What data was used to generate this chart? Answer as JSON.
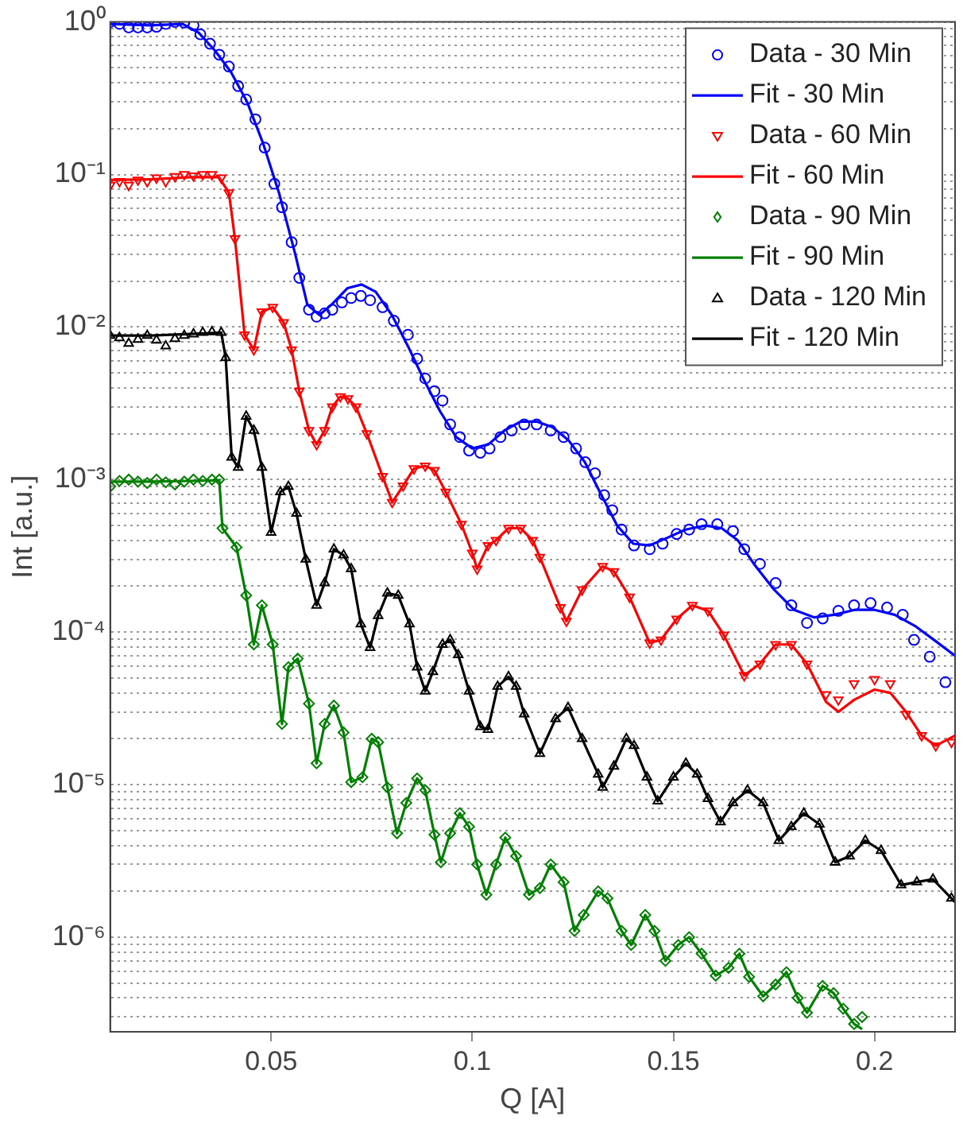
{
  "chart_data": {
    "type": "scatter",
    "xlabel": "Q [A]",
    "ylabel": "Int [a.u.]",
    "log": "y",
    "grid": "y",
    "legend": "top right",
    "xlim": [
      0.01,
      0.22
    ],
    "xticks": [
      0.05,
      0.1,
      0.15,
      0.2
    ],
    "ylim": [
      2.4e-07,
      1
    ],
    "yticks": [
      {
        "value": 3e-07,
        "label": null
      },
      {
        "value": 4e-07,
        "label": null
      },
      {
        "value": 5e-07,
        "label": null
      },
      {
        "value": 6e-07,
        "label": null
      },
      {
        "value": 7e-07,
        "label": null
      },
      {
        "value": 8e-07,
        "label": null
      },
      {
        "value": 9e-07,
        "label": null
      },
      {
        "value": 1e-06,
        "label": "10⁻⁶"
      },
      {
        "value": 2e-06,
        "label": null
      },
      {
        "value": 3e-06,
        "label": null
      },
      {
        "value": 4e-06,
        "label": null
      },
      {
        "value": 5e-06,
        "label": null
      },
      {
        "value": 6e-06,
        "label": null
      },
      {
        "value": 7e-06,
        "label": null
      },
      {
        "value": 8e-06,
        "label": null
      },
      {
        "value": 9e-06,
        "label": null
      },
      {
        "value": 1e-05,
        "label": "10⁻⁵"
      },
      {
        "value": 2e-05,
        "label": null
      },
      {
        "value": 3e-05,
        "label": null
      },
      {
        "value": 4e-05,
        "label": null
      },
      {
        "value": 5e-05,
        "label": null
      },
      {
        "value": 6e-05,
        "label": null
      },
      {
        "value": 7e-05,
        "label": null
      },
      {
        "value": 8e-05,
        "label": null
      },
      {
        "value": 9e-05,
        "label": null
      },
      {
        "value": 0.0001,
        "label": "10⁻⁴"
      },
      {
        "value": 0.0002,
        "label": null
      },
      {
        "value": 0.0003,
        "label": null
      },
      {
        "value": 0.0004,
        "label": null
      },
      {
        "value": 0.0005,
        "label": null
      },
      {
        "value": 0.0006,
        "label": null
      },
      {
        "value": 0.0007,
        "label": null
      },
      {
        "value": 0.0008,
        "label": null
      },
      {
        "value": 0.0009,
        "label": null
      },
      {
        "value": 0.001,
        "label": "10⁻³"
      },
      {
        "value": 0.002,
        "label": null
      },
      {
        "value": 0.003,
        "label": null
      },
      {
        "value": 0.004,
        "label": null
      },
      {
        "value": 0.005,
        "label": null
      },
      {
        "value": 0.006,
        "label": null
      },
      {
        "value": 0.007,
        "label": null
      },
      {
        "value": 0.008,
        "label": null
      },
      {
        "value": 0.009,
        "label": null
      },
      {
        "value": 0.01,
        "label": "10⁻²"
      },
      {
        "value": 0.02,
        "label": null
      },
      {
        "value": 0.03,
        "label": null
      },
      {
        "value": 0.04,
        "label": null
      },
      {
        "value": 0.05,
        "label": null
      },
      {
        "value": 0.06,
        "label": null
      },
      {
        "value": 0.07,
        "label": null
      },
      {
        "value": 0.08,
        "label": null
      },
      {
        "value": 0.09,
        "label": null
      },
      {
        "value": 0.1,
        "label": "10⁻¹"
      },
      {
        "value": 0.2,
        "label": null
      },
      {
        "value": 0.3,
        "label": null
      },
      {
        "value": 0.4,
        "label": null
      },
      {
        "value": 0.5,
        "label": null
      },
      {
        "value": 0.6,
        "label": null
      },
      {
        "value": 0.7,
        "label": null
      },
      {
        "value": 0.8,
        "label": null
      },
      {
        "value": 0.9,
        "label": null
      },
      {
        "value": 1,
        "label": "10⁰"
      }
    ],
    "series": [
      {
        "name": "Data - 30 Min",
        "type": "scatter",
        "marker": "circle",
        "color": "#0000ff",
        "x": [
          0.01,
          0.0123,
          0.0146,
          0.0169,
          0.0192,
          0.0215,
          0.0238,
          0.0261,
          0.0284,
          0.0307,
          0.0324,
          0.0348,
          0.0371,
          0.0395,
          0.0418,
          0.0438,
          0.0461,
          0.0484,
          0.0508,
          0.0527,
          0.0551,
          0.057,
          0.0594,
          0.0613,
          0.0633,
          0.0652,
          0.0676,
          0.0699,
          0.0723,
          0.0746,
          0.0777,
          0.0805,
          0.084,
          0.0863,
          0.0883,
          0.0906,
          0.0926,
          0.0945,
          0.0969,
          0.0992,
          0.102,
          0.1043,
          0.107,
          0.1098,
          0.1129,
          0.116,
          0.1195,
          0.1227,
          0.1258,
          0.1281,
          0.1305,
          0.1328,
          0.1348,
          0.1371,
          0.1402,
          0.1441,
          0.1473,
          0.1508,
          0.1539,
          0.157,
          0.1609,
          0.1648,
          0.1676,
          0.1715,
          0.1754,
          0.1793,
          0.1832,
          0.1871,
          0.191,
          0.1949,
          0.199,
          0.2031,
          0.207,
          0.2098,
          0.2137,
          0.2176
        ],
        "values": [
          1.0,
          0.97,
          0.92,
          0.92,
          0.92,
          0.93,
          0.97,
          1.0,
          0.99,
          0.95,
          0.83,
          0.72,
          0.61,
          0.51,
          0.38,
          0.31,
          0.23,
          0.15,
          0.087,
          0.061,
          0.036,
          0.021,
          0.013,
          0.0117,
          0.0123,
          0.013,
          0.0145,
          0.0155,
          0.016,
          0.015,
          0.0135,
          0.011,
          0.0089,
          0.0062,
          0.0046,
          0.0038,
          0.0033,
          0.0023,
          0.0019,
          0.00155,
          0.0015,
          0.0016,
          0.0019,
          0.0021,
          0.0023,
          0.0023,
          0.0021,
          0.0019,
          0.0016,
          0.0013,
          0.0011,
          0.00079,
          0.00063,
          0.00047,
          0.00037,
          0.00035,
          0.00038,
          0.00044,
          0.00047,
          0.00051,
          0.00051,
          0.00046,
          0.00035,
          0.00028,
          0.00021,
          0.00015,
          0.000115,
          0.000123,
          0.000138,
          0.00015,
          0.000155,
          0.000145,
          0.00013,
          8.9e-05,
          6.9e-05,
          4.7e-05
        ]
      },
      {
        "name": "Fit - 30 Min",
        "type": "line",
        "marker": "none",
        "color": "#0000ff",
        "x": [
          0.01,
          0.02,
          0.028,
          0.032,
          0.036,
          0.04,
          0.044,
          0.048,
          0.052,
          0.056,
          0.059,
          0.062,
          0.065,
          0.069,
          0.0725,
          0.076,
          0.08,
          0.084,
          0.088,
          0.092,
          0.096,
          0.1,
          0.104,
          0.108,
          0.112,
          0.116,
          0.12,
          0.124,
          0.128,
          0.132,
          0.136,
          0.14,
          0.144,
          0.148,
          0.153,
          0.158,
          0.162,
          0.166,
          0.17,
          0.175,
          0.18,
          0.185,
          0.19,
          0.195,
          0.2,
          0.205,
          0.21,
          0.215,
          0.22
        ],
        "values": [
          0.97,
          0.95,
          0.97,
          0.85,
          0.65,
          0.47,
          0.3,
          0.16,
          0.075,
          0.03,
          0.014,
          0.012,
          0.014,
          0.018,
          0.019,
          0.017,
          0.012,
          0.0075,
          0.0045,
          0.0028,
          0.0019,
          0.0016,
          0.0017,
          0.0021,
          0.0024,
          0.0024,
          0.0022,
          0.0018,
          0.0013,
          0.0008,
          0.0005,
          0.00038,
          0.00037,
          0.00041,
          0.00047,
          0.0005,
          0.00048,
          0.0004,
          0.00028,
          0.00019,
          0.00014,
          0.000125,
          0.00013,
          0.00014,
          0.00014,
          0.00013,
          0.00011,
          8.8e-05,
          7e-05
        ]
      },
      {
        "name": "Data - 60 Min",
        "type": "scatter",
        "marker": "triangle-down",
        "color": "#ff0000",
        "x": [
          0.01,
          0.0123,
          0.0146,
          0.0169,
          0.0192,
          0.0215,
          0.0238,
          0.0261,
          0.0284,
          0.0307,
          0.033,
          0.0353,
          0.0376,
          0.0395,
          0.041,
          0.0434,
          0.0457,
          0.0477,
          0.0504,
          0.0531,
          0.0551,
          0.057,
          0.0594,
          0.0613,
          0.0633,
          0.0652,
          0.0672,
          0.0691,
          0.0711,
          0.0738,
          0.0777,
          0.0801,
          0.0828,
          0.0855,
          0.0883,
          0.0906,
          0.0934,
          0.0973,
          0.1,
          0.1012,
          0.1039,
          0.1059,
          0.109,
          0.112,
          0.115,
          0.1168,
          0.1219,
          0.1234,
          0.1273,
          0.1324,
          0.1352,
          0.1391,
          0.1441,
          0.1469,
          0.1508,
          0.1547,
          0.1586,
          0.1625,
          0.1676,
          0.1715,
          0.1754,
          0.1793,
          0.1832,
          0.1879,
          0.191,
          0.1949,
          0.2,
          0.2039,
          0.2078,
          0.2117,
          0.2152,
          0.2191
        ],
        "values": [
          0.085,
          0.09,
          0.085,
          0.092,
          0.09,
          0.095,
          0.09,
          0.097,
          0.1,
          0.098,
          0.1,
          0.1,
          0.095,
          0.076,
          0.038,
          0.0089,
          0.0071,
          0.0126,
          0.0135,
          0.0107,
          0.0071,
          0.0038,
          0.0021,
          0.0017,
          0.0021,
          0.003,
          0.0035,
          0.0034,
          0.003,
          0.002,
          0.00105,
          0.00071,
          0.00091,
          0.00118,
          0.00123,
          0.00115,
          0.00083,
          0.00051,
          0.00033,
          0.00026,
          0.00037,
          0.0004,
          0.00048,
          0.00048,
          0.0004,
          0.00031,
          0.000145,
          0.000118,
          0.00019,
          0.00027,
          0.00025,
          0.00017,
          8.5e-05,
          8.9e-05,
          0.000122,
          0.00015,
          0.000138,
          9.6e-05,
          5.2e-05,
          6.2e-05,
          8.3e-05,
          8.3e-05,
          6.2e-05,
          3.9e-05,
          3.6e-05,
          4.6e-05,
          4.9e-05,
          4.6e-05,
          2.9e-05,
          2.1e-05,
          1.8e-05,
          1.9e-05
        ]
      },
      {
        "name": "Fit - 60 Min",
        "type": "line",
        "marker": "none",
        "color": "#ff0000",
        "x": [
          0.01,
          0.02,
          0.03,
          0.037,
          0.0395,
          0.041,
          0.0434,
          0.0457,
          0.0477,
          0.0504,
          0.0531,
          0.0551,
          0.057,
          0.0594,
          0.0613,
          0.0633,
          0.0652,
          0.0672,
          0.0691,
          0.0711,
          0.0738,
          0.0777,
          0.0801,
          0.0828,
          0.0855,
          0.0883,
          0.0906,
          0.0934,
          0.0973,
          0.1,
          0.1012,
          0.1039,
          0.1059,
          0.109,
          0.112,
          0.115,
          0.1168,
          0.1219,
          0.1234,
          0.1273,
          0.1324,
          0.1352,
          0.1391,
          0.1441,
          0.1469,
          0.1508,
          0.1547,
          0.1586,
          0.1625,
          0.1676,
          0.1715,
          0.1754,
          0.1793,
          0.1832,
          0.1879,
          0.191,
          0.1949,
          0.2,
          0.2039,
          0.2078,
          0.2117,
          0.2152,
          0.22
        ],
        "values": [
          0.092,
          0.093,
          0.096,
          0.096,
          0.076,
          0.038,
          0.0089,
          0.0071,
          0.0126,
          0.0135,
          0.0107,
          0.0071,
          0.0038,
          0.0021,
          0.0017,
          0.0021,
          0.003,
          0.0035,
          0.0034,
          0.003,
          0.002,
          0.00105,
          0.00071,
          0.00091,
          0.00118,
          0.00123,
          0.00115,
          0.00083,
          0.00051,
          0.00033,
          0.00026,
          0.00037,
          0.0004,
          0.00048,
          0.00048,
          0.0004,
          0.00031,
          0.000145,
          0.000118,
          0.00019,
          0.00027,
          0.00025,
          0.00017,
          8.5e-05,
          8.9e-05,
          0.000122,
          0.00015,
          0.000138,
          9.6e-05,
          5.2e-05,
          6.2e-05,
          8.3e-05,
          8.3e-05,
          6.2e-05,
          3.5e-05,
          3e-05,
          3.6e-05,
          4.2e-05,
          4e-05,
          3e-05,
          2.1e-05,
          1.8e-05,
          2.1e-05
        ]
      },
      {
        "name": "Data - 90 Min",
        "type": "scatter",
        "marker": "diamond",
        "color": "#008000",
        "x": [
          0.01,
          0.0123,
          0.0146,
          0.0169,
          0.0192,
          0.0215,
          0.0238,
          0.0261,
          0.0284,
          0.0307,
          0.033,
          0.0353,
          0.0371,
          0.0379,
          0.0414,
          0.0438,
          0.0457,
          0.0477,
          0.0504,
          0.0527,
          0.0543,
          0.0566,
          0.0594,
          0.0613,
          0.0633,
          0.0656,
          0.068,
          0.0699,
          0.0727,
          0.075,
          0.0766,
          0.0789,
          0.0813,
          0.0836,
          0.0863,
          0.0883,
          0.0906,
          0.0922,
          0.0945,
          0.0969,
          0.0992,
          0.1012,
          0.1035,
          0.1059,
          0.1082,
          0.1109,
          0.1141,
          0.1168,
          0.1195,
          0.1227,
          0.1254,
          0.1277,
          0.1313,
          0.1336,
          0.1371,
          0.1395,
          0.143,
          0.1453,
          0.148,
          0.1512,
          0.1539,
          0.157,
          0.1605,
          0.1637,
          0.1664,
          0.1688,
          0.1723,
          0.1754,
          0.1781,
          0.1809,
          0.1832,
          0.1871,
          0.1898,
          0.1922,
          0.1949,
          0.1969
        ],
        "values": [
          0.0009,
          0.00098,
          0.001,
          0.00097,
          0.00095,
          0.001,
          0.00096,
          0.00093,
          0.00097,
          0.001,
          0.00098,
          0.001,
          0.001,
          0.00048,
          0.00036,
          0.000174,
          8.3e-05,
          0.00015,
          8.3e-05,
          2.5e-05,
          5.9e-05,
          6.7e-05,
          3.4e-05,
          1.38e-05,
          2.5e-05,
          3.3e-05,
          2.2e-05,
          1.04e-05,
          1.12e-05,
          2e-05,
          1.9e-05,
          9.6e-06,
          4.8e-06,
          7.6e-06,
          1.1e-05,
          9.2e-06,
          4.7e-06,
          3.1e-06,
          4.8e-06,
          6.5e-06,
          5.3e-06,
          3e-06,
          1.9e-06,
          3e-06,
          4.5e-06,
          3.4e-06,
          1.9e-06,
          2.1e-06,
          3e-06,
          2.3e-06,
          1.1e-06,
          1.4e-06,
          2e-06,
          1.8e-06,
          1.1e-06,
          8.9e-07,
          1.4e-06,
          1.1e-06,
          7e-07,
          8.9e-07,
          1e-06,
          7.8e-07,
          5.6e-07,
          6.3e-07,
          7.8e-07,
          5.5e-07,
          4.1e-07,
          4.9e-07,
          5.9e-07,
          4e-07,
          3.2e-07,
          4.8e-07,
          4.3e-07,
          3.4e-07,
          2.7e-07,
          3e-07
        ]
      },
      {
        "name": "Fit - 90 Min",
        "type": "line",
        "marker": "none",
        "color": "#008000",
        "x": [
          0.01,
          0.02,
          0.03,
          0.0371,
          0.0379,
          0.0414,
          0.0438,
          0.0457,
          0.0477,
          0.0504,
          0.0527,
          0.0543,
          0.0566,
          0.0594,
          0.0613,
          0.0633,
          0.0656,
          0.068,
          0.0699,
          0.0727,
          0.075,
          0.0766,
          0.0789,
          0.0813,
          0.0836,
          0.0863,
          0.0883,
          0.0906,
          0.0922,
          0.0945,
          0.0969,
          0.0992,
          0.1012,
          0.1035,
          0.1059,
          0.1082,
          0.1109,
          0.1141,
          0.1168,
          0.1195,
          0.1227,
          0.1254,
          0.1277,
          0.1313,
          0.1336,
          0.1371,
          0.1395,
          0.143,
          0.1453,
          0.148,
          0.1512,
          0.1539,
          0.157,
          0.1605,
          0.1637,
          0.1664,
          0.1688,
          0.1723,
          0.1754,
          0.1781,
          0.1809,
          0.1832,
          0.1871,
          0.1898,
          0.1922,
          0.1949,
          0.1969
        ],
        "values": [
          0.00097,
          0.00097,
          0.00098,
          0.00099,
          0.00048,
          0.00036,
          0.000174,
          8.3e-05,
          0.00015,
          8.3e-05,
          2.5e-05,
          5.9e-05,
          6.7e-05,
          3.4e-05,
          1.38e-05,
          2.5e-05,
          3.3e-05,
          2.2e-05,
          1.04e-05,
          1.12e-05,
          2e-05,
          1.9e-05,
          9.6e-06,
          4.8e-06,
          7.6e-06,
          1.1e-05,
          9.2e-06,
          4.7e-06,
          3.1e-06,
          4.8e-06,
          6.5e-06,
          5.3e-06,
          3e-06,
          1.9e-06,
          3e-06,
          4.5e-06,
          3.4e-06,
          1.9e-06,
          2.1e-06,
          3e-06,
          2.3e-06,
          1.1e-06,
          1.4e-06,
          2e-06,
          1.8e-06,
          1.1e-06,
          8.9e-07,
          1.4e-06,
          1.1e-06,
          7e-07,
          8.9e-07,
          1e-06,
          7.8e-07,
          5.6e-07,
          6.3e-07,
          7.8e-07,
          5.5e-07,
          4.1e-07,
          4.9e-07,
          5.9e-07,
          4e-07,
          3.2e-07,
          4.8e-07,
          4.3e-07,
          3.4e-07,
          2.7e-07,
          2.5e-07
        ]
      },
      {
        "name": "Data - 120 Min",
        "type": "scatter",
        "marker": "triangle",
        "color": "#000000",
        "x": [
          0.01,
          0.0123,
          0.0146,
          0.0169,
          0.0192,
          0.0215,
          0.0238,
          0.0261,
          0.0284,
          0.0307,
          0.033,
          0.0353,
          0.0376,
          0.0387,
          0.0402,
          0.0418,
          0.0438,
          0.0457,
          0.0477,
          0.05,
          0.0523,
          0.0543,
          0.0563,
          0.0586,
          0.0613,
          0.0633,
          0.0656,
          0.068,
          0.0699,
          0.0723,
          0.0746,
          0.0766,
          0.0789,
          0.0816,
          0.0844,
          0.0863,
          0.0883,
          0.0902,
          0.0926,
          0.0945,
          0.0965,
          0.0992,
          0.102,
          0.1039,
          0.1063,
          0.109,
          0.1109,
          0.1129,
          0.1168,
          0.1207,
          0.1238,
          0.1273,
          0.1313,
          0.1324,
          0.1352,
          0.1383,
          0.1402,
          0.1434,
          0.1461,
          0.15,
          0.1531,
          0.1559,
          0.1586,
          0.1617,
          0.1648,
          0.1684,
          0.1723,
          0.1762,
          0.1793,
          0.1824,
          0.1863,
          0.1902,
          0.1938,
          0.1977,
          0.2016,
          0.2066,
          0.2105,
          0.2145,
          0.2191
        ],
        "values": [
          0.0088,
          0.0085,
          0.0078,
          0.0083,
          0.0088,
          0.0082,
          0.0075,
          0.0084,
          0.0088,
          0.009,
          0.0092,
          0.0093,
          0.0092,
          0.0063,
          0.0014,
          0.0012,
          0.0026,
          0.0021,
          0.0012,
          0.00045,
          0.00083,
          0.0009,
          0.0006,
          0.0003,
          0.00015,
          0.00021,
          0.00035,
          0.00032,
          0.00026,
          0.000113,
          7.9e-05,
          0.000128,
          0.00018,
          0.000174,
          0.000113,
          5.9e-05,
          4.1e-05,
          5.5e-05,
          8.3e-05,
          8.9e-05,
          7.1e-05,
          4.1e-05,
          2.4e-05,
          2.3e-05,
          4.4e-05,
          5.1e-05,
          4.4e-05,
          2.9e-05,
          1.6e-05,
          2.7e-05,
          3.2e-05,
          2e-05,
          1.17e-05,
          9.6e-06,
          1.32e-05,
          2e-05,
          1.8e-05,
          1.12e-05,
          7.8e-06,
          1.12e-05,
          1.38e-05,
          1.17e-05,
          8.1e-06,
          5.7e-06,
          7.6e-06,
          9.2e-06,
          7.6e-06,
          4.3e-06,
          5.3e-06,
          6.5e-06,
          5.5e-06,
          3.1e-06,
          3.4e-06,
          4.3e-06,
          3.7e-06,
          2.2e-06,
          2.3e-06,
          2.4e-06,
          1.8e-06
        ]
      },
      {
        "name": "Fit - 120 Min",
        "type": "line",
        "marker": "none",
        "color": "#000000",
        "x": [
          0.01,
          0.02,
          0.03,
          0.0376,
          0.0387,
          0.0402,
          0.0418,
          0.0438,
          0.0457,
          0.0477,
          0.05,
          0.0523,
          0.0543,
          0.0563,
          0.0586,
          0.0613,
          0.0633,
          0.0656,
          0.068,
          0.0699,
          0.0723,
          0.0746,
          0.0766,
          0.0789,
          0.0816,
          0.0844,
          0.0863,
          0.0883,
          0.0902,
          0.0926,
          0.0945,
          0.0965,
          0.0992,
          0.102,
          0.1039,
          0.1063,
          0.109,
          0.1109,
          0.1129,
          0.1168,
          0.1207,
          0.1238,
          0.1273,
          0.1313,
          0.1324,
          0.1352,
          0.1383,
          0.1402,
          0.1434,
          0.1461,
          0.15,
          0.1531,
          0.1559,
          0.1586,
          0.1617,
          0.1648,
          0.1684,
          0.1723,
          0.1762,
          0.1793,
          0.1824,
          0.1863,
          0.1902,
          0.1938,
          0.1977,
          0.2016,
          0.2066,
          0.2105,
          0.2145,
          0.22
        ],
        "values": [
          0.0088,
          0.0088,
          0.009,
          0.0092,
          0.0063,
          0.0014,
          0.0012,
          0.0026,
          0.0021,
          0.0012,
          0.00045,
          0.00083,
          0.0009,
          0.0006,
          0.0003,
          0.00015,
          0.00021,
          0.00035,
          0.00032,
          0.00026,
          0.000113,
          7.9e-05,
          0.000128,
          0.00018,
          0.000174,
          0.000113,
          5.9e-05,
          4.1e-05,
          5.5e-05,
          8.3e-05,
          8.9e-05,
          7.1e-05,
          4.1e-05,
          2.4e-05,
          2.3e-05,
          4.4e-05,
          5.1e-05,
          4.4e-05,
          2.9e-05,
          1.6e-05,
          2.7e-05,
          3.2e-05,
          2e-05,
          1.17e-05,
          9.6e-06,
          1.32e-05,
          2e-05,
          1.8e-05,
          1.12e-05,
          7.8e-06,
          1.12e-05,
          1.38e-05,
          1.17e-05,
          8.1e-06,
          5.7e-06,
          7.6e-06,
          9.2e-06,
          7.6e-06,
          4.3e-06,
          5.3e-06,
          6.5e-06,
          5.5e-06,
          3.1e-06,
          3.4e-06,
          4.3e-06,
          3.7e-06,
          2.2e-06,
          2.3e-06,
          2.4e-06,
          1.7e-06
        ]
      }
    ]
  }
}
